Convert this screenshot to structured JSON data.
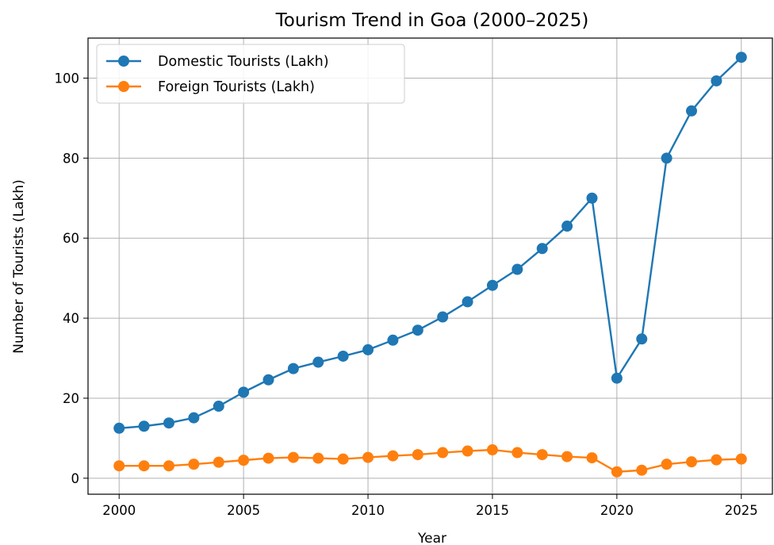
{
  "chart_data": {
    "type": "line",
    "title": "Tourism Trend in Goa (2000–2025)",
    "xlabel": "Year",
    "ylabel": "Number of Tourists (Lakh)",
    "x": [
      2000,
      2001,
      2002,
      2003,
      2004,
      2005,
      2006,
      2007,
      2008,
      2009,
      2010,
      2011,
      2012,
      2013,
      2014,
      2015,
      2016,
      2017,
      2018,
      2019,
      2020,
      2021,
      2022,
      2023,
      2024,
      2025
    ],
    "xlim": [
      1998.75,
      2026.25
    ],
    "ylim": [
      -4,
      110
    ],
    "xticks": [
      2000,
      2005,
      2010,
      2015,
      2020,
      2025
    ],
    "yticks": [
      0,
      20,
      40,
      60,
      80,
      100
    ],
    "grid": true,
    "legend_position": "upper-left",
    "series": [
      {
        "name": "Domestic Tourists (Lakh)",
        "color": "#1f77b4",
        "values": [
          12.5,
          13.0,
          13.8,
          15.1,
          18.0,
          21.5,
          24.6,
          27.4,
          29.0,
          30.5,
          32.1,
          34.5,
          37.0,
          40.3,
          44.1,
          48.2,
          52.2,
          57.4,
          63.0,
          70.0,
          25.0,
          34.8,
          80.0,
          91.8,
          99.3,
          105.2
        ]
      },
      {
        "name": "Foreign Tourists (Lakh)",
        "color": "#ff7f0e",
        "values": [
          3.1,
          3.1,
          3.1,
          3.5,
          4.0,
          4.5,
          5.0,
          5.2,
          5.0,
          4.8,
          5.2,
          5.6,
          5.9,
          6.4,
          6.8,
          7.1,
          6.4,
          5.9,
          5.4,
          5.1,
          1.6,
          2.0,
          3.5,
          4.1,
          4.6,
          4.8
        ]
      }
    ]
  }
}
